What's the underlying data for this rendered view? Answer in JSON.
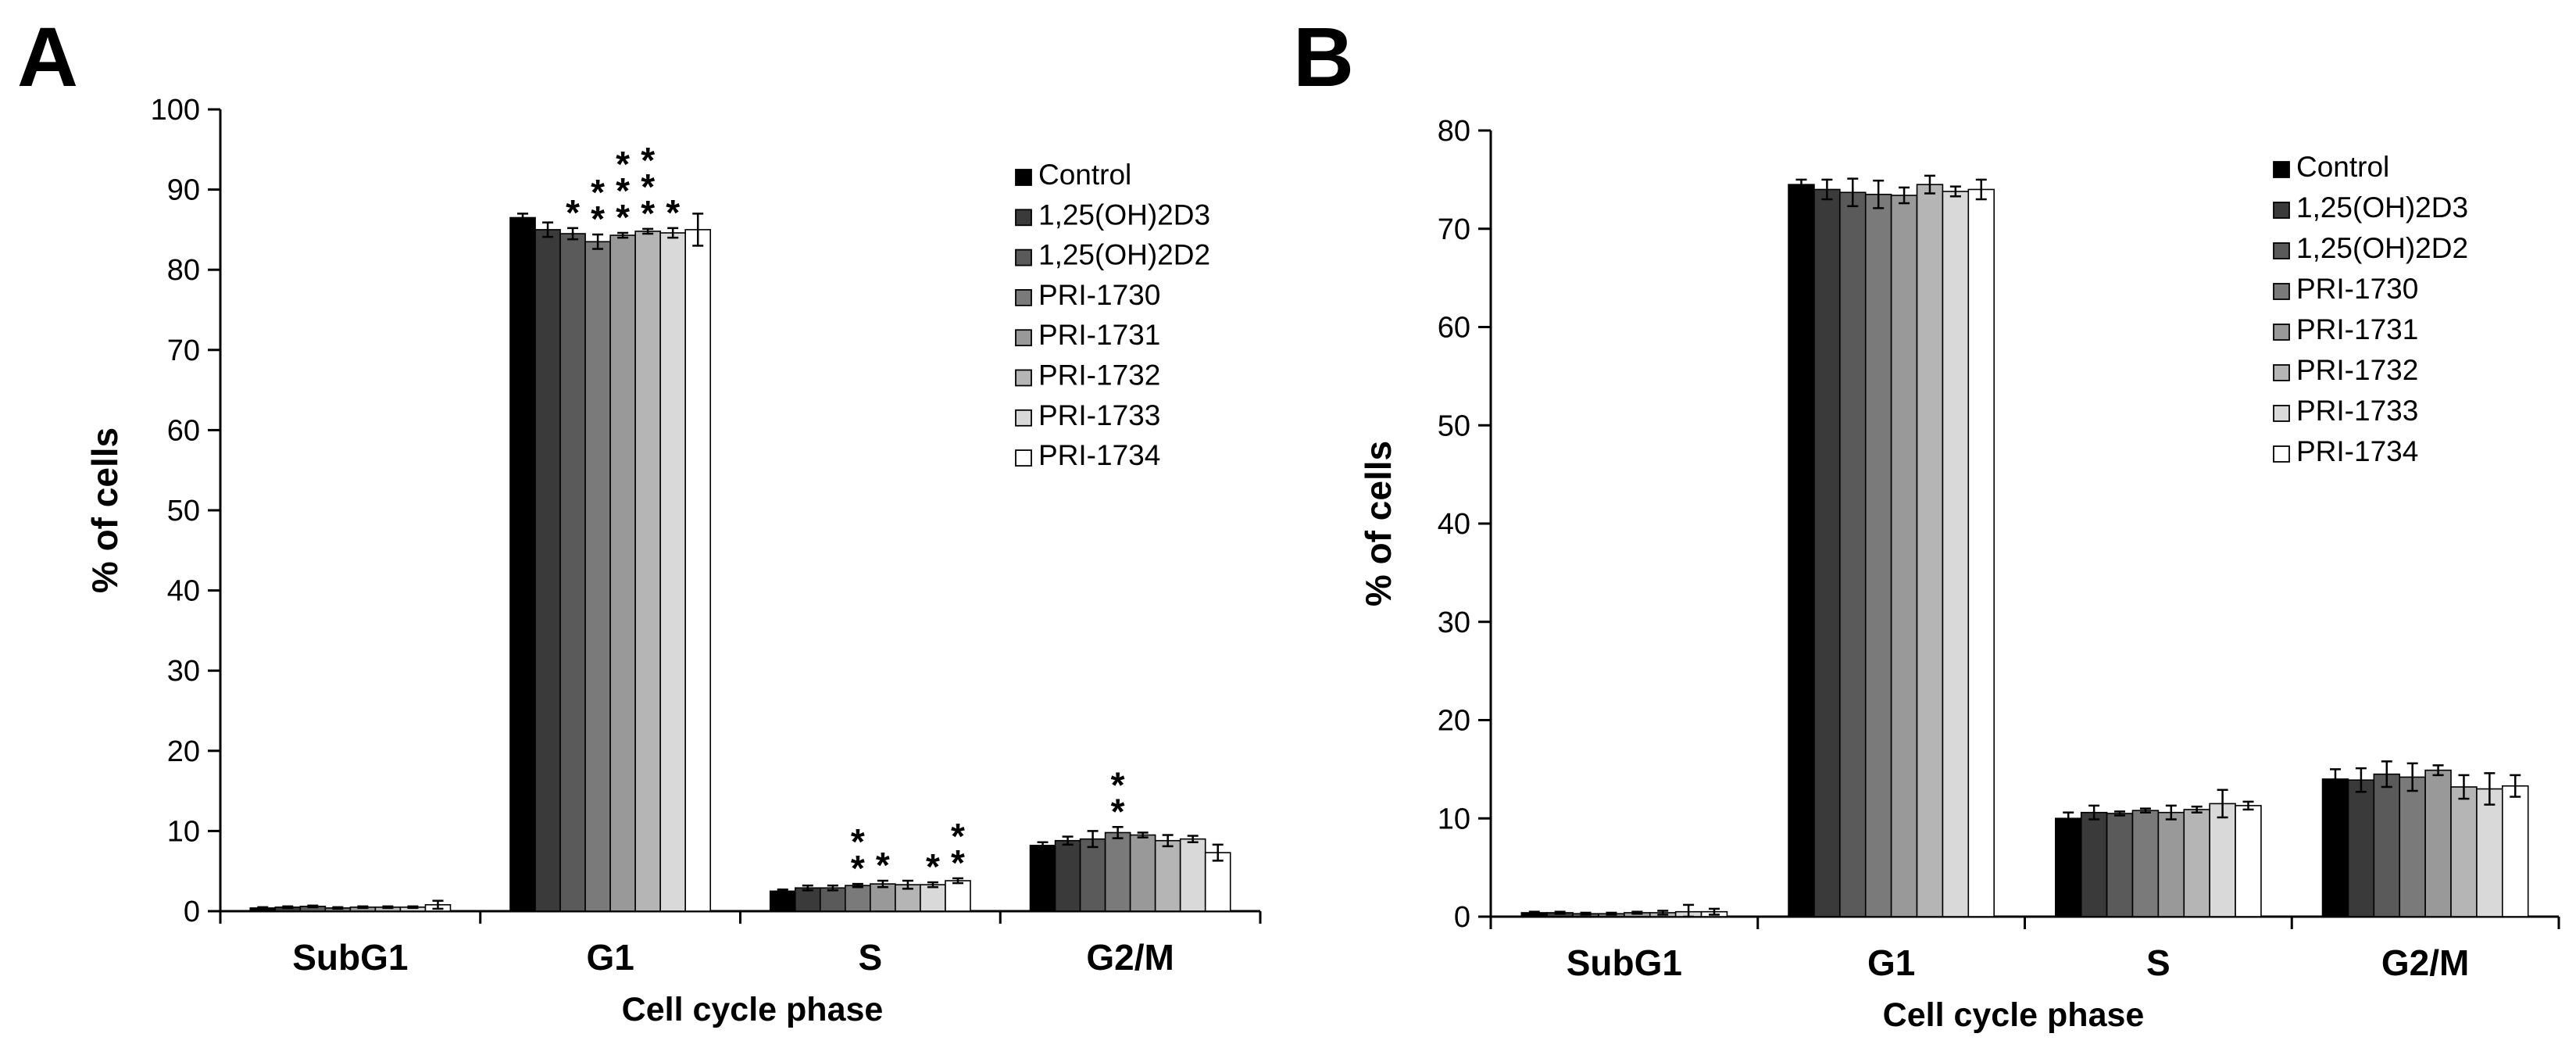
{
  "panel_labels": [
    "A",
    "B"
  ],
  "chart_data": [
    {
      "type": "bar",
      "panel": "A",
      "xlabel": "Cell cycle phase",
      "ylabel": "% of cells",
      "ylim": [
        0,
        100
      ],
      "yticks": [
        0,
        10,
        20,
        30,
        40,
        50,
        60,
        70,
        80,
        90,
        100
      ],
      "categories": [
        "SubG1",
        "G1",
        "S",
        "G2/M"
      ],
      "legend_position": "top-right",
      "series": [
        {
          "name": "Control",
          "color": "#000000",
          "values": [
            0.4,
            86.5,
            2.5,
            8.2
          ],
          "errors": [
            0.1,
            0.5,
            0.2,
            0.4
          ]
        },
        {
          "name": "1,25(OH)2D3",
          "color": "#3a3a3a",
          "values": [
            0.5,
            85.0,
            2.9,
            8.8
          ],
          "errors": [
            0.1,
            0.9,
            0.3,
            0.5
          ]
        },
        {
          "name": "1,25(OH)2D2",
          "color": "#5a5a5a",
          "values": [
            0.6,
            84.5,
            2.9,
            9.0
          ],
          "errors": [
            0.1,
            0.7,
            0.3,
            1.0
          ]
        },
        {
          "name": "PRI-1730",
          "color": "#7a7a7a",
          "values": [
            0.4,
            83.5,
            3.2,
            9.8
          ],
          "errors": [
            0.1,
            0.9,
            0.2,
            0.7
          ]
        },
        {
          "name": "PRI-1731",
          "color": "#999999",
          "values": [
            0.5,
            84.3,
            3.4,
            9.5
          ],
          "errors": [
            0.1,
            0.3,
            0.4,
            0.3
          ]
        },
        {
          "name": "PRI-1732",
          "color": "#b5b5b5",
          "values": [
            0.5,
            84.8,
            3.3,
            8.8
          ],
          "errors": [
            0.1,
            0.3,
            0.5,
            0.7
          ]
        },
        {
          "name": "PRI-1733",
          "color": "#d9d9d9",
          "values": [
            0.5,
            84.6,
            3.3,
            9.0
          ],
          "errors": [
            0.1,
            0.6,
            0.3,
            0.4
          ]
        },
        {
          "name": "PRI-1734",
          "color": "#ffffff",
          "values": [
            0.8,
            85.0,
            3.8,
            7.3
          ],
          "errors": [
            0.5,
            2.0,
            0.3,
            1.0
          ]
        }
      ],
      "annotations": [
        {
          "category": "G1",
          "series": "1,25(OH)2D2",
          "text": "*"
        },
        {
          "category": "G1",
          "series": "PRI-1730",
          "text": "**"
        },
        {
          "category": "G1",
          "series": "PRI-1731",
          "text": "***"
        },
        {
          "category": "G1",
          "series": "PRI-1732",
          "text": "***"
        },
        {
          "category": "G1",
          "series": "PRI-1733",
          "text": "*"
        },
        {
          "category": "S",
          "series": "PRI-1730",
          "text": "**"
        },
        {
          "category": "S",
          "series": "PRI-1731",
          "text": "*"
        },
        {
          "category": "S",
          "series": "PRI-1733",
          "text": "*"
        },
        {
          "category": "S",
          "series": "PRI-1734",
          "text": "**"
        },
        {
          "category": "G2/M",
          "series": "PRI-1730",
          "text": "**"
        }
      ]
    },
    {
      "type": "bar",
      "panel": "B",
      "xlabel": "Cell cycle phase",
      "ylabel": "% of cells",
      "ylim": [
        0,
        80
      ],
      "yticks": [
        0,
        10,
        20,
        30,
        40,
        50,
        60,
        70,
        80
      ],
      "categories": [
        "SubG1",
        "G1",
        "S",
        "G2/M"
      ],
      "legend_position": "top-right",
      "series": [
        {
          "name": "Control",
          "color": "#000000",
          "values": [
            0.4,
            74.5,
            10.0,
            14.0
          ],
          "errors": [
            0.1,
            0.5,
            0.6,
            1.0
          ]
        },
        {
          "name": "1,25(OH)2D3",
          "color": "#3a3a3a",
          "values": [
            0.4,
            74.0,
            10.6,
            13.9
          ],
          "errors": [
            0.1,
            1.0,
            0.7,
            1.2
          ]
        },
        {
          "name": "1,25(OH)2D2",
          "color": "#5a5a5a",
          "values": [
            0.3,
            73.7,
            10.5,
            14.5
          ],
          "errors": [
            0.1,
            1.4,
            0.2,
            1.3
          ]
        },
        {
          "name": "PRI-1730",
          "color": "#7a7a7a",
          "values": [
            0.3,
            73.5,
            10.8,
            14.2
          ],
          "errors": [
            0.1,
            1.4,
            0.2,
            1.4
          ]
        },
        {
          "name": "PRI-1731",
          "color": "#999999",
          "values": [
            0.4,
            73.4,
            10.6,
            14.9
          ],
          "errors": [
            0.1,
            0.8,
            0.7,
            0.5
          ]
        },
        {
          "name": "PRI-1732",
          "color": "#b5b5b5",
          "values": [
            0.4,
            74.5,
            10.9,
            13.2
          ],
          "errors": [
            0.2,
            0.9,
            0.3,
            1.2
          ]
        },
        {
          "name": "PRI-1733",
          "color": "#d9d9d9",
          "values": [
            0.5,
            73.8,
            11.5,
            13.0
          ],
          "errors": [
            0.7,
            0.5,
            1.4,
            1.6
          ]
        },
        {
          "name": "PRI-1734",
          "color": "#ffffff",
          "values": [
            0.5,
            74.0,
            11.3,
            13.3
          ],
          "errors": [
            0.3,
            1.0,
            0.4,
            1.1
          ]
        }
      ]
    }
  ]
}
